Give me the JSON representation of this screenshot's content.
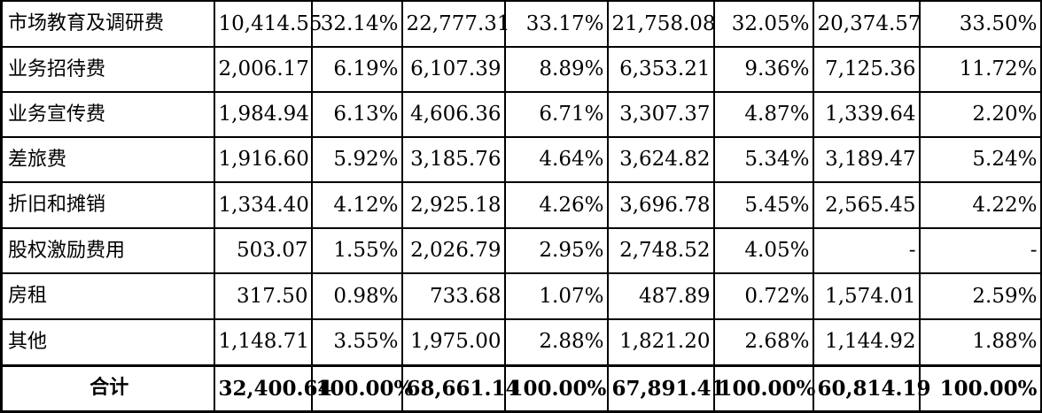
{
  "table": {
    "rows": [
      {
        "label": "市场教育及调研费",
        "cells": [
          "10,414.55",
          "32.14%",
          "22,777.31",
          "33.17%",
          "21,758.08",
          "32.05%",
          "20,374.57",
          "33.50%"
        ]
      },
      {
        "label": "业务招待费",
        "cells": [
          "2,006.17",
          "6.19%",
          "6,107.39",
          "8.89%",
          "6,353.21",
          "9.36%",
          "7,125.36",
          "11.72%"
        ]
      },
      {
        "label": "业务宣传费",
        "cells": [
          "1,984.94",
          "6.13%",
          "4,606.36",
          "6.71%",
          "3,307.37",
          "4.87%",
          "1,339.64",
          "2.20%"
        ]
      },
      {
        "label": "差旅费",
        "cells": [
          "1,916.60",
          "5.92%",
          "3,185.76",
          "4.64%",
          "3,624.82",
          "5.34%",
          "3,189.47",
          "5.24%"
        ]
      },
      {
        "label": "折旧和摊销",
        "cells": [
          "1,334.40",
          "4.12%",
          "2,925.18",
          "4.26%",
          "3,696.78",
          "5.45%",
          "2,565.45",
          "4.22%"
        ]
      },
      {
        "label": "股权激励费用",
        "cells": [
          "503.07",
          "1.55%",
          "2,026.79",
          "2.95%",
          "2,748.52",
          "4.05%",
          "-",
          "-"
        ]
      },
      {
        "label": "房租",
        "cells": [
          "317.50",
          "0.98%",
          "733.68",
          "1.07%",
          "487.89",
          "0.72%",
          "1,574.01",
          "2.59%"
        ]
      },
      {
        "label": "其他",
        "cells": [
          "1,148.71",
          "3.55%",
          "1,975.00",
          "2.88%",
          "1,821.20",
          "2.68%",
          "1,144.92",
          "1.88%"
        ]
      }
    ],
    "total": {
      "label": "合计",
      "cells": [
        "32,400.64",
        "100.00%",
        "68,661.14",
        "100.00%",
        "67,891.41",
        "100.00%",
        "60,814.19",
        "100.00%"
      ]
    }
  }
}
